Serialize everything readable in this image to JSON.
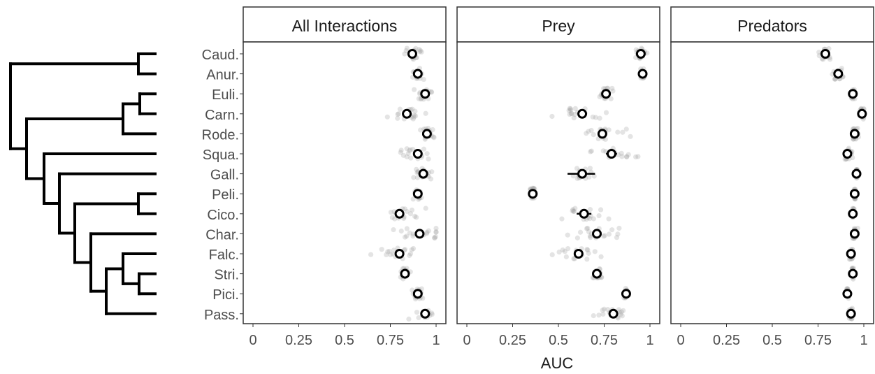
{
  "chart_data": {
    "type": "scatter",
    "xlabel": "AUC",
    "x_ticks": [
      "0",
      "0.25",
      "0.5",
      "0.75",
      "1"
    ],
    "xlim": [
      0,
      1
    ],
    "grid": false,
    "legend": "none",
    "taxa": [
      "Caud.",
      "Anur.",
      "Euli.",
      "Carn.",
      "Rode.",
      "Squa.",
      "Gall.",
      "Peli.",
      "Cico.",
      "Char.",
      "Falc.",
      "Stri.",
      "Pici.",
      "Pass."
    ],
    "colors": {
      "point": "#000000",
      "jitter": "#9e9e9e",
      "background": "#ffffff",
      "strip_fill": "#ffffff"
    },
    "facets": [
      {
        "strip": "All Interactions",
        "series": [
          {
            "mean": 0.87,
            "ci": [
              0.85,
              0.89
            ],
            "spread": 0.05
          },
          {
            "mean": 0.9,
            "ci": [
              0.89,
              0.91
            ],
            "spread": 0.03
          },
          {
            "mean": 0.94,
            "ci": [
              0.92,
              0.96
            ],
            "spread": 0.04
          },
          {
            "mean": 0.84,
            "ci": [
              0.82,
              0.86
            ],
            "spread": 0.08
          },
          {
            "mean": 0.95,
            "ci": [
              0.94,
              0.96
            ],
            "spread": 0.03
          },
          {
            "mean": 0.9,
            "ci": [
              0.88,
              0.92
            ],
            "spread": 0.08
          },
          {
            "mean": 0.93,
            "ci": [
              0.92,
              0.94
            ],
            "spread": 0.04
          },
          {
            "mean": 0.9,
            "ci": [
              0.89,
              0.91
            ],
            "spread": 0.02
          },
          {
            "mean": 0.8,
            "ci": [
              0.78,
              0.82
            ],
            "spread": 0.08
          },
          {
            "mean": 0.91,
            "ci": [
              0.89,
              0.93
            ],
            "spread": 0.1
          },
          {
            "mean": 0.8,
            "ci": [
              0.78,
              0.82
            ],
            "spread": 0.09
          },
          {
            "mean": 0.83,
            "ci": [
              0.82,
              0.84
            ],
            "spread": 0.02
          },
          {
            "mean": 0.9,
            "ci": [
              0.89,
              0.91
            ],
            "spread": 0.02
          },
          {
            "mean": 0.94,
            "ci": [
              0.93,
              0.95
            ],
            "spread": 0.06
          }
        ]
      },
      {
        "strip": "Prey",
        "series": [
          {
            "mean": 0.95,
            "ci": [
              0.94,
              0.96
            ],
            "spread": 0.02
          },
          {
            "mean": 0.96,
            "ci": [
              0.95,
              0.97
            ],
            "spread": 0.01
          },
          {
            "mean": 0.76,
            "ci": [
              0.74,
              0.78
            ],
            "spread": 0.03
          },
          {
            "mean": 0.63,
            "ci": [
              0.61,
              0.65
            ],
            "spread": 0.1
          },
          {
            "mean": 0.74,
            "ci": [
              0.72,
              0.76
            ],
            "spread": 0.1
          },
          {
            "mean": 0.79,
            "ci": [
              0.76,
              0.82
            ],
            "spread": 0.12
          },
          {
            "mean": 0.63,
            "ci": [
              0.55,
              0.7
            ],
            "spread": 0.05
          },
          {
            "mean": 0.36,
            "ci": [
              0.34,
              0.38
            ],
            "spread": 0.01
          },
          {
            "mean": 0.64,
            "ci": [
              0.6,
              0.68
            ],
            "spread": 0.1
          },
          {
            "mean": 0.71,
            "ci": [
              0.69,
              0.73
            ],
            "spread": 0.12
          },
          {
            "mean": 0.61,
            "ci": [
              0.59,
              0.63
            ],
            "spread": 0.12
          },
          {
            "mean": 0.71,
            "ci": [
              0.7,
              0.72
            ],
            "spread": 0.02
          },
          {
            "mean": 0.87,
            "ci": [
              0.86,
              0.88
            ],
            "spread": 0.01
          },
          {
            "mean": 0.8,
            "ci": [
              0.78,
              0.82
            ],
            "spread": 0.08
          }
        ]
      },
      {
        "strip": "Predators",
        "series": [
          {
            "mean": 0.79,
            "ci": [
              0.78,
              0.8
            ],
            "spread": 0.03
          },
          {
            "mean": 0.86,
            "ci": [
              0.85,
              0.87
            ],
            "spread": 0.02
          },
          {
            "mean": 0.94,
            "ci": [
              0.93,
              0.95
            ],
            "spread": 0.01
          },
          {
            "mean": 0.99,
            "ci": [
              0.98,
              1.0
            ],
            "spread": 0.01
          },
          {
            "mean": 0.95,
            "ci": [
              0.94,
              0.96
            ],
            "spread": 0.02
          },
          {
            "mean": 0.91,
            "ci": [
              0.9,
              0.92
            ],
            "spread": 0.02
          },
          {
            "mean": 0.96,
            "ci": [
              0.95,
              0.97
            ],
            "spread": 0.005
          },
          {
            "mean": 0.95,
            "ci": [
              0.94,
              0.96
            ],
            "spread": 0.005
          },
          {
            "mean": 0.94,
            "ci": [
              0.93,
              0.95
            ],
            "spread": 0.005
          },
          {
            "mean": 0.95,
            "ci": [
              0.94,
              0.96
            ],
            "spread": 0.01
          },
          {
            "mean": 0.93,
            "ci": [
              0.92,
              0.94
            ],
            "spread": 0.01
          },
          {
            "mean": 0.94,
            "ci": [
              0.93,
              0.95
            ],
            "spread": 0.005
          },
          {
            "mean": 0.91,
            "ci": [
              0.9,
              0.92
            ],
            "spread": 0.005
          },
          {
            "mean": 0.93,
            "ci": [
              0.92,
              0.94
            ],
            "spread": 0.01
          }
        ]
      }
    ]
  }
}
